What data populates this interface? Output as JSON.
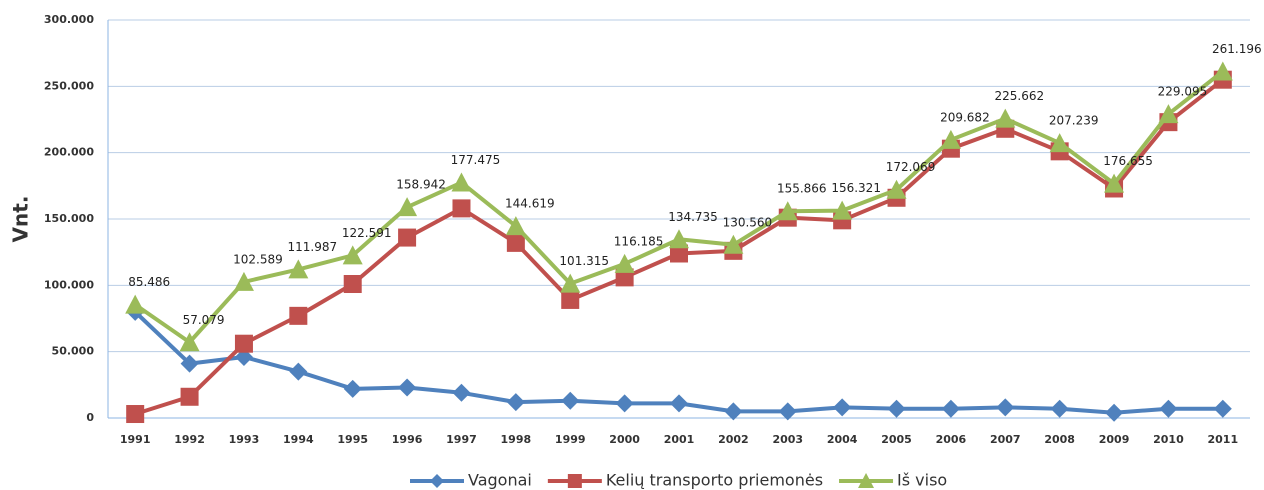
{
  "chart_data": {
    "type": "line",
    "y_label": "Vnt.",
    "categories": [
      "1991",
      "1992",
      "1993",
      "1994",
      "1995",
      "1996",
      "1997",
      "1998",
      "1999",
      "2000",
      "2001",
      "2002",
      "2003",
      "2004",
      "2005",
      "2006",
      "2007",
      "2008",
      "2009",
      "2010",
      "2011"
    ],
    "series": [
      {
        "name": "Vagonai",
        "color": "#4f81bd",
        "marker": "diamond",
        "values": [
          80000,
          41000,
          46000,
          35000,
          22000,
          23000,
          19000,
          12000,
          13000,
          11000,
          11000,
          5000,
          5000,
          8000,
          7000,
          7000,
          8000,
          7000,
          4000,
          7000,
          7000
        ]
      },
      {
        "name": "Kelių transporto priemonės",
        "color": "#c0504d",
        "marker": "square",
        "values": [
          3000,
          16000,
          56000,
          77000,
          101000,
          136000,
          158000,
          132000,
          89000,
          106000,
          124000,
          126000,
          151000,
          149000,
          166000,
          203000,
          218000,
          201000,
          173000,
          223000,
          255000
        ]
      },
      {
        "name": "Iš viso",
        "color": "#9bbb59",
        "marker": "triangle",
        "values": [
          85486,
          57079,
          102589,
          111987,
          122591,
          158942,
          177475,
          144619,
          101315,
          116185,
          134735,
          130560,
          155866,
          156321,
          172069,
          209682,
          225662,
          207239,
          176655,
          229095,
          261196
        ],
        "value_labels": [
          "85.486",
          "57.079",
          "102.589",
          "111.987",
          "122.591",
          "158.942",
          "177.475",
          "144.619",
          "101.315",
          "116.185",
          "134.735",
          "130.560",
          "155.866",
          "156.321",
          "172.069",
          "209.682",
          "225.662",
          "207.239",
          "176.655",
          "229.095",
          "261.196"
        ]
      }
    ],
    "ylim": [
      0,
      300000
    ],
    "yticks": [
      0,
      {
        "value": 50000,
        "label": "50.000"
      },
      {
        "value": 100000,
        "label": "100.000"
      },
      {
        "value": 150000,
        "label": "150.000"
      },
      {
        "value": 200000,
        "label": "200.000"
      },
      {
        "value": 250000,
        "label": "250.000"
      },
      {
        "value": 300000,
        "label": "300.000"
      }
    ],
    "grid": true,
    "legend": "bottom"
  }
}
